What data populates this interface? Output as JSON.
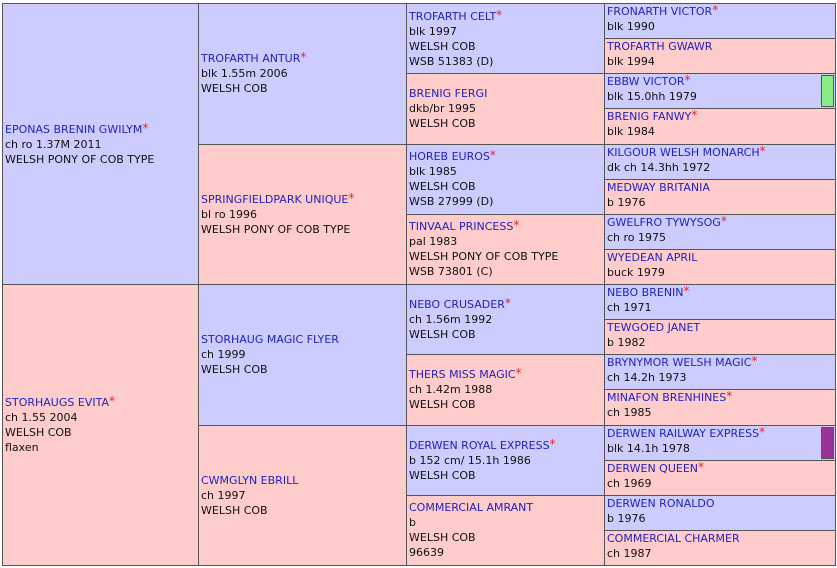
{
  "pedigree": {
    "colors": {
      "sire": "#ccccff",
      "dam": "#ffcccc",
      "name": "#2222bb",
      "asterisk": "#ee2222"
    },
    "generations": [
      [
        {
          "name": "EPONAS BRENIN GWILYM",
          "asterisk": "*",
          "details": [
            "ch ro 1.37M 2011",
            "WELSH PONY OF COB TYPE"
          ]
        },
        {
          "name": "STORHAUGS EVITA",
          "asterisk": "*",
          "details": [
            "ch 1.55 2004",
            "WELSH COB",
            "flaxen"
          ]
        }
      ],
      [
        {
          "name": "TROFARTH ANTUR",
          "asterisk": "*",
          "details": [
            "blk 1.55m 2006",
            "WELSH COB"
          ]
        },
        {
          "name": "SPRINGFIELDPARK UNIQUE",
          "asterisk": "*",
          "details": [
            "bl ro 1996",
            "WELSH PONY OF COB TYPE"
          ]
        },
        {
          "name": "STORHAUG MAGIC FLYER",
          "details": [
            "ch 1999",
            "WELSH COB"
          ]
        },
        {
          "name": "CWMGLYN EBRILL",
          "details": [
            "ch 1997",
            "WELSH COB"
          ]
        }
      ],
      [
        {
          "name": "TROFARTH CELT",
          "asterisk": "*",
          "details": [
            "blk 1997",
            "WELSH COB",
            "WSB 51383 (D)"
          ]
        },
        {
          "name": "BRENIG FERGI",
          "details": [
            "dkb/br 1995",
            "WELSH COB"
          ]
        },
        {
          "name": "HOREB EUROS",
          "asterisk": "*",
          "details": [
            "blk 1985",
            "WELSH COB",
            "WSB 27999 (D)"
          ]
        },
        {
          "name": "TINVAAL PRINCESS",
          "asterisk": "*",
          "details": [
            "pal 1983",
            "WELSH PONY OF COB TYPE",
            "WSB 73801 (C)"
          ]
        },
        {
          "name": "NEBO CRUSADER",
          "asterisk": "*",
          "details": [
            "ch 1.56m 1992",
            "WELSH COB"
          ]
        },
        {
          "name": "THERS MISS MAGIC",
          "asterisk": "*",
          "details": [
            "ch 1.42m 1988",
            "WELSH COB"
          ]
        },
        {
          "name": "DERWEN ROYAL EXPRESS",
          "asterisk": "*",
          "details": [
            "b 152 cm/ 15.1h 1986",
            "WELSH COB"
          ]
        },
        {
          "name": "COMMERCIAL AMRANT",
          "details": [
            "b",
            "WELSH COB",
            "96639"
          ]
        }
      ],
      [
        {
          "name": "FRONARTH VICTOR",
          "asterisk": "*",
          "details": [
            "blk 1990"
          ]
        },
        {
          "name": "TROFARTH GWAWR",
          "details": [
            "blk 1994"
          ]
        },
        {
          "name": "EBBW VICTOR",
          "asterisk": "*",
          "details": [
            "blk 15.0hh 1979"
          ],
          "marker": "#88ee88"
        },
        {
          "name": "BRENIG FANWY",
          "asterisk": "*",
          "details": [
            "blk 1984"
          ]
        },
        {
          "name": "KILGOUR WELSH MONARCH",
          "asterisk": "*",
          "details": [
            "dk ch 14.3hh 1972"
          ]
        },
        {
          "name": "MEDWAY BRITANIA",
          "details": [
            "b 1976"
          ]
        },
        {
          "name": "GWELFRO TYWYSOG",
          "asterisk": "*",
          "details": [
            "ch ro 1975"
          ]
        },
        {
          "name": "WYEDEAN APRIL",
          "details": [
            "buck 1979"
          ]
        },
        {
          "name": "NEBO BRENIN",
          "asterisk": "*",
          "details": [
            "ch 1971"
          ]
        },
        {
          "name": "TEWGOED JANET",
          "details": [
            "b 1982"
          ]
        },
        {
          "name": "BRYNYMOR WELSH MAGIC",
          "asterisk": "*",
          "details": [
            "ch 14.2h 1973"
          ]
        },
        {
          "name": "MINAFON BRENHINES",
          "asterisk": "*",
          "details": [
            "ch 1985"
          ]
        },
        {
          "name": "DERWEN RAILWAY EXPRESS",
          "asterisk": "*",
          "details": [
            "blk 14.1h 1978"
          ],
          "marker": "#993399"
        },
        {
          "name": "DERWEN QUEEN",
          "asterisk": "*",
          "details": [
            "ch 1969"
          ]
        },
        {
          "name": "DERWEN RONALDO",
          "details": [
            "b 1976"
          ]
        },
        {
          "name": "COMMERCIAL CHARMER",
          "details": [
            "ch 1987"
          ]
        }
      ]
    ]
  }
}
